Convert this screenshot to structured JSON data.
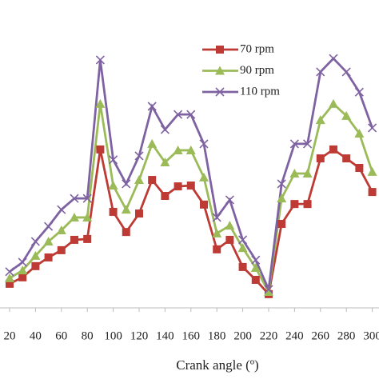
{
  "chart_data": {
    "type": "line",
    "x_label": "Crank angle (º)",
    "x": [
      20,
      30,
      40,
      50,
      60,
      70,
      80,
      90,
      100,
      110,
      120,
      130,
      140,
      150,
      160,
      170,
      180,
      190,
      200,
      210,
      220,
      230,
      240,
      250,
      260,
      270,
      280,
      290,
      300
    ],
    "xlim": [
      12.6,
      305.2
    ],
    "xticks": [
      20,
      40,
      60,
      80,
      100,
      120,
      140,
      160,
      180,
      200,
      220,
      240,
      260,
      280,
      300
    ],
    "ylim": [
      0,
      100
    ],
    "series": [
      {
        "name": "70 rpm",
        "color": "#be3a34",
        "marker": "square",
        "values": [
          8.6,
          10.9,
          14.9,
          18.0,
          20.6,
          24.3,
          24.6,
          56.6,
          34.3,
          27.1,
          33.7,
          45.7,
          40.0,
          43.4,
          43.7,
          36.9,
          20.9,
          24.3,
          14.6,
          10.0,
          4.9,
          30.0,
          37.1,
          37.1,
          53.4,
          56.6,
          53.4,
          50.0,
          41.4
        ]
      },
      {
        "name": "90 rpm",
        "color": "#9bbb59",
        "marker": "triangle",
        "values": [
          10.6,
          13.4,
          18.6,
          23.7,
          27.7,
          32.3,
          32.3,
          72.9,
          43.7,
          35.1,
          45.7,
          58.6,
          52.0,
          56.3,
          56.3,
          46.6,
          26.6,
          29.4,
          21.4,
          14.3,
          5.7,
          39.1,
          48.0,
          48.0,
          67.1,
          72.9,
          68.6,
          62.3,
          48.6
        ]
      },
      {
        "name": "110 rpm",
        "color": "#7e62a1",
        "marker": "x",
        "values": [
          12.9,
          16.3,
          23.7,
          29.1,
          35.1,
          39.1,
          39.1,
          88.6,
          52.9,
          44.3,
          54.3,
          72.0,
          63.7,
          69.1,
          69.1,
          58.6,
          32.3,
          38.6,
          24.3,
          17.1,
          6.6,
          44.3,
          58.6,
          58.6,
          84.3,
          89.1,
          84.3,
          77.1,
          64.3
        ]
      }
    ]
  }
}
